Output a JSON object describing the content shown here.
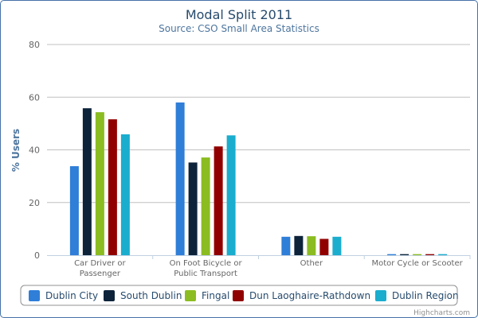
{
  "chart_data": {
    "type": "bar",
    "title": "Modal Split 2011",
    "subtitle": "Source: CSO Small Area Statistics",
    "ylabel": "% Users",
    "xlabel": "",
    "ylim": [
      0,
      80
    ],
    "yticks": [
      0,
      20,
      40,
      60,
      80
    ],
    "grid": true,
    "legend_position": "bottom",
    "categories": [
      [
        "Car Driver or",
        "Passenger"
      ],
      [
        "On Foot Bicycle or",
        "Public Transport"
      ],
      [
        "Other"
      ],
      [
        "Motor Cycle or Scooter"
      ]
    ],
    "series": [
      {
        "name": "Dublin City",
        "color": "#2f7ed8",
        "values": [
          33.8,
          58.0,
          7.0,
          0.4
        ]
      },
      {
        "name": "South Dublin",
        "color": "#0d233a",
        "values": [
          55.8,
          35.2,
          7.3,
          0.4
        ]
      },
      {
        "name": "Fingal",
        "color": "#8bbc21",
        "values": [
          54.3,
          37.1,
          7.2,
          0.4
        ]
      },
      {
        "name": "Dun Laoghaire-Rathdown",
        "color": "#910000",
        "values": [
          51.6,
          41.3,
          6.2,
          0.4
        ]
      },
      {
        "name": "Dublin Region",
        "color": "#1aadce",
        "values": [
          45.9,
          45.5,
          7.0,
          0.4
        ]
      }
    ]
  },
  "credits": "Highcharts.com"
}
